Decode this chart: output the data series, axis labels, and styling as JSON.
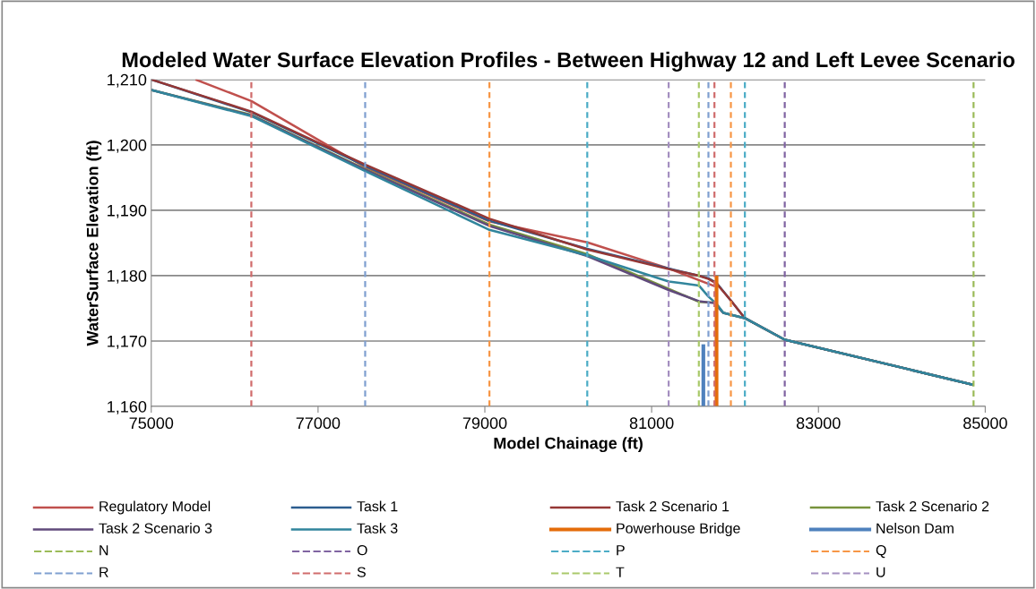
{
  "chart_data": {
    "type": "line",
    "title": "Modeled Water Surface Elevation Profiles - Between Highway 12 and Left Levee Scenario",
    "xlabel": "Model Chainage (ft)",
    "ylabel": "WaterSurface Elevation (ft)",
    "xlim": [
      75000,
      85000
    ],
    "xticks": [
      75000,
      77000,
      79000,
      81000,
      83000,
      85000
    ],
    "ylim": [
      1160,
      1210
    ],
    "yticks": [
      {
        "value": 1160,
        "label": "1,160"
      },
      {
        "value": 1170,
        "label": "1,170"
      },
      {
        "value": 1180,
        "label": "1,180"
      },
      {
        "value": 1190,
        "label": "1,190"
      },
      {
        "value": 1200,
        "label": "1,200"
      },
      {
        "value": 1210,
        "label": "1,210"
      }
    ],
    "grid": "y",
    "legend": "bottom",
    "marker": "none",
    "series": [
      {
        "name": "Regulatory Model",
        "color": "#c0504d",
        "line_style": "solid",
        "x": [
          75530,
          76200,
          77565,
          79055,
          80228,
          81204,
          81753
        ],
        "values": [
          1210,
          1206.7,
          1196.6,
          1188.3,
          1185.1,
          1181.1,
          1178.4
        ]
      },
      {
        "name": "Task 1",
        "color": "#2c5d8f",
        "line_style": "solid",
        "x": [
          75000,
          76200,
          77565,
          79055,
          80228,
          81204,
          81566,
          81681,
          81778,
          81950,
          82118,
          82596,
          84860
        ],
        "values": [
          1210,
          1205,
          1196.8,
          1188.4,
          1184.1,
          1181.1,
          1180,
          1179.6,
          1178.9,
          1176.2,
          1173.5,
          1170.2,
          1163.3
        ]
      },
      {
        "name": "Task 2 Scenario 1",
        "color": "#953735",
        "line_style": "solid",
        "x": [
          75000,
          76200,
          77565,
          79055,
          80228,
          81204,
          81566,
          81681,
          81778,
          81950,
          82118,
          82596,
          84860
        ],
        "values": [
          1210,
          1205.1,
          1197,
          1188.7,
          1184,
          1181,
          1180,
          1179.5,
          1178.8,
          1176.2,
          1173.5,
          1170.2,
          1163.3
        ]
      },
      {
        "name": "Task 2 Scenario 2",
        "color": "#77933c",
        "line_style": "solid",
        "x": [
          75000,
          76200,
          77565,
          79055,
          80228,
          81204,
          81566,
          81753,
          81860,
          82118,
          82596,
          84860
        ],
        "values": [
          1208.4,
          1204.6,
          1196.3,
          1187.8,
          1183.3,
          1178,
          1176,
          1175.9,
          1174.3,
          1173.5,
          1170.2,
          1163.3
        ]
      },
      {
        "name": "Task 2 Scenario 3",
        "color": "#604a7b",
        "line_style": "solid",
        "x": [
          75000,
          76200,
          77565,
          79055,
          80228,
          81204,
          81566,
          81753,
          81860,
          82118,
          82596,
          84860
        ],
        "values": [
          1208.4,
          1204.5,
          1196.2,
          1187.6,
          1183,
          1177.8,
          1176.1,
          1175.8,
          1174.3,
          1173.5,
          1170.2,
          1163.3
        ]
      },
      {
        "name": "Task 3",
        "color": "#31859c",
        "line_style": "solid",
        "x": [
          75000,
          76200,
          77565,
          79055,
          80228,
          81204,
          81566,
          81681,
          81778,
          81860,
          82118,
          82596,
          84860
        ],
        "values": [
          1208.4,
          1204.4,
          1196,
          1187,
          1183.1,
          1179.1,
          1178.5,
          1176.8,
          1175.7,
          1174.3,
          1173.5,
          1170.2,
          1163.3
        ]
      },
      {
        "name": "Powerhouse Bridge",
        "color": "#e46c0a",
        "line_style": "solid",
        "x": [
          81778,
          81778
        ],
        "values": [
          1160,
          1180
        ]
      },
      {
        "name": "Nelson Dam",
        "color": "#4f81bd",
        "line_style": "solid",
        "x": [
          81620,
          81620
        ],
        "values": [
          1160,
          1169.5
        ]
      },
      {
        "name": "N",
        "color": "#9bbb59",
        "line_style": "dashed",
        "x": [
          84860,
          84860
        ],
        "values": [
          1160,
          1210
        ]
      },
      {
        "name": "O",
        "color": "#8064a2",
        "line_style": "dashed",
        "x": [
          82596,
          82596
        ],
        "values": [
          1160,
          1210
        ]
      },
      {
        "name": "P",
        "color": "#4bacc6",
        "line_style": "dashed",
        "x": [
          80228,
          80228,
          null,
          82118,
          82118
        ],
        "values": [
          1160,
          1210,
          null,
          1160,
          1210
        ]
      },
      {
        "name": "Q",
        "color": "#f79646",
        "line_style": "dashed",
        "x": [
          79055,
          79055,
          null,
          81950,
          81950
        ],
        "values": [
          1160,
          1210,
          null,
          1160,
          1210
        ]
      },
      {
        "name": "R",
        "color": "#7f9fd0",
        "line_style": "dashed",
        "x": [
          77565,
          77565,
          null,
          81681,
          81681
        ],
        "values": [
          1160,
          1210,
          null,
          1160,
          1210
        ]
      },
      {
        "name": "S",
        "color": "#d06b6b",
        "line_style": "dashed",
        "x": [
          76200,
          76200,
          null,
          81753,
          81753
        ],
        "values": [
          1160,
          1210,
          null,
          1160,
          1210
        ]
      },
      {
        "name": "T",
        "color": "#a9c96a",
        "line_style": "dashed",
        "x": [
          81566,
          81566
        ],
        "values": [
          1160,
          1210
        ]
      },
      {
        "name": "U",
        "color": "#a48fc0",
        "line_style": "dashed",
        "x": [
          81204,
          81204
        ],
        "values": [
          1160,
          1210
        ]
      }
    ]
  }
}
